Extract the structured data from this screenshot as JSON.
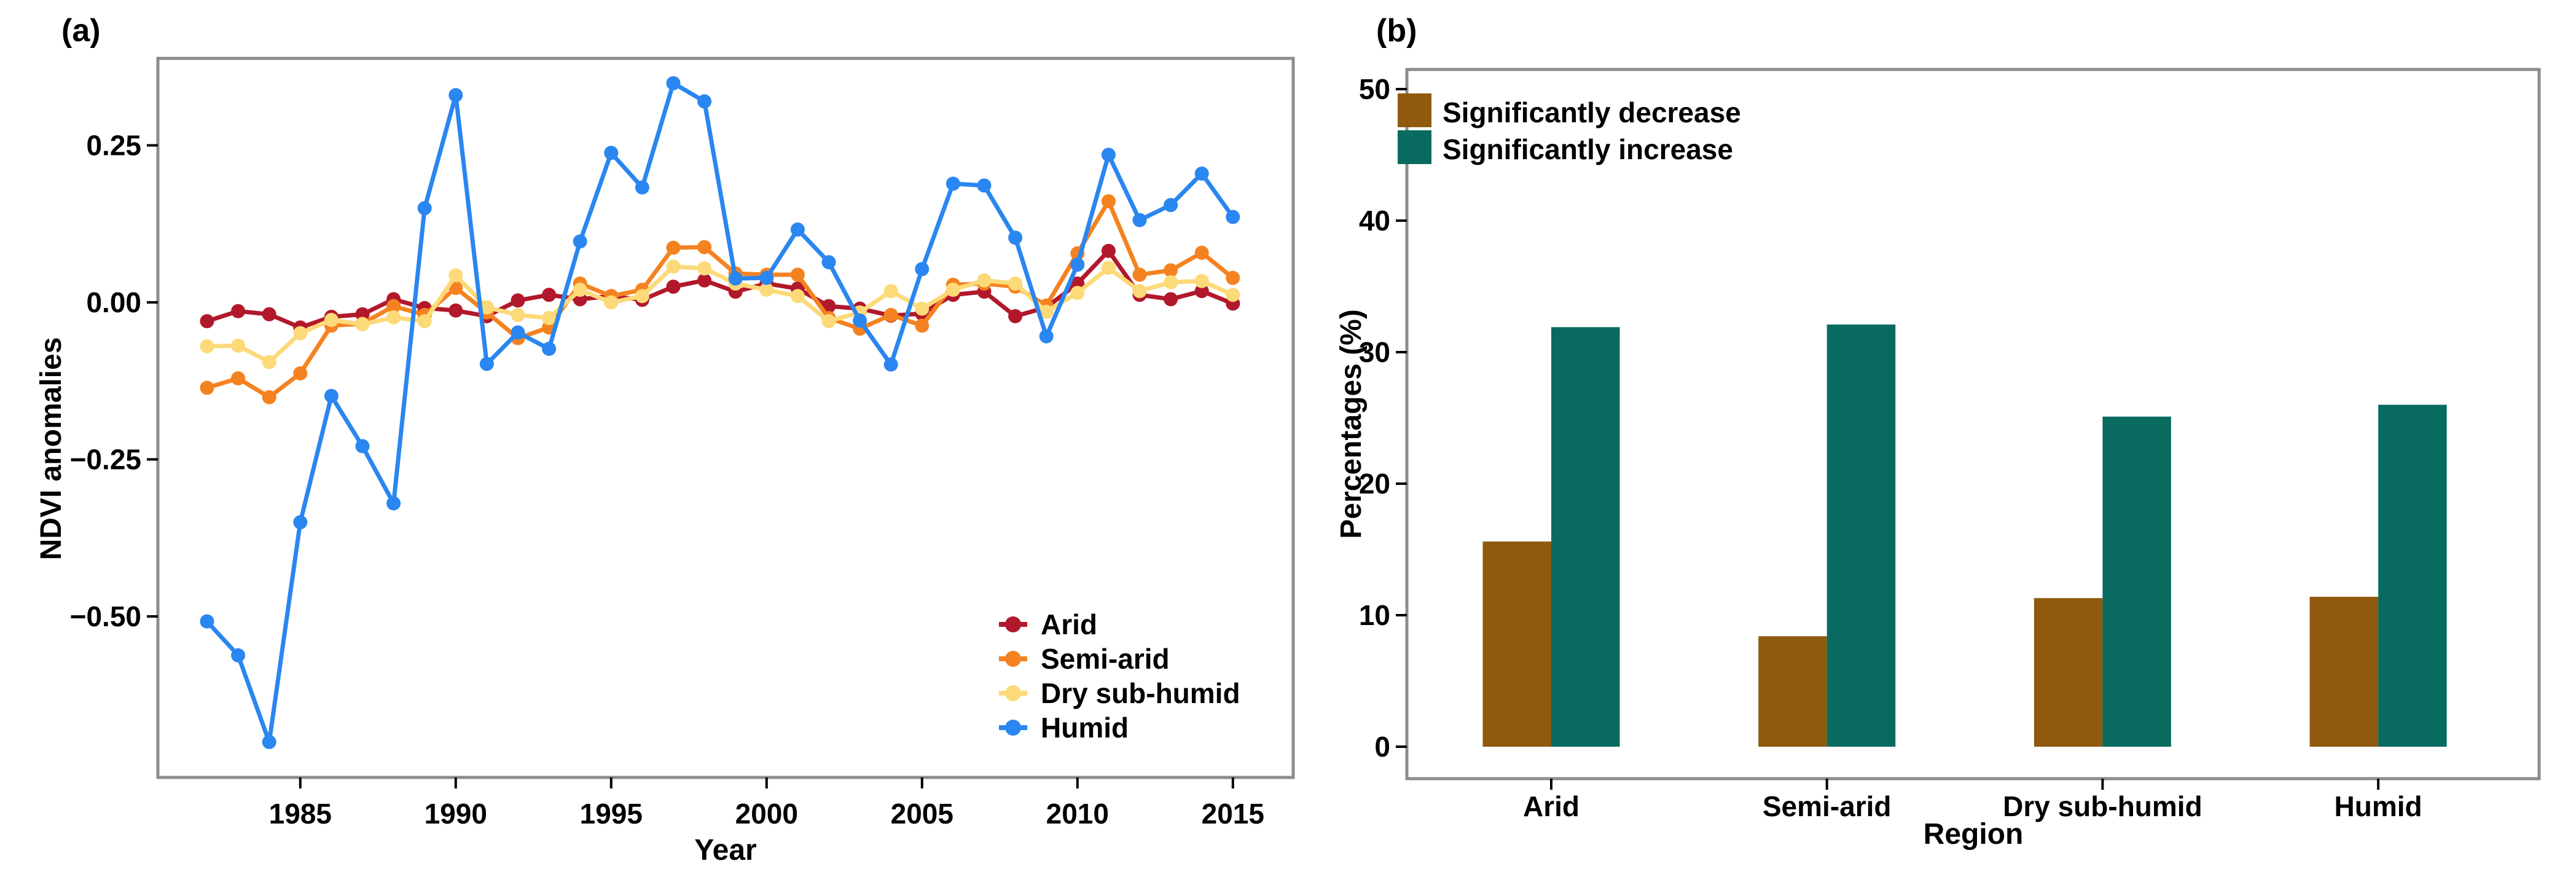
{
  "figure": {
    "background": "#ffffff",
    "frame_color": "#8c8c8c",
    "tick_color": "#000000",
    "text_color": "#000000"
  },
  "chart_data": [
    {
      "id": "ndvi-anomalies-by-region",
      "type": "line",
      "panel_label": "(a)",
      "xlabel": "Year",
      "ylabel": "NDVI anomalies",
      "x": [
        1982,
        1983,
        1984,
        1985,
        1986,
        1987,
        1988,
        1989,
        1990,
        1991,
        1992,
        1993,
        1994,
        1995,
        1996,
        1997,
        1998,
        1999,
        2000,
        2001,
        2002,
        2003,
        2004,
        2005,
        2006,
        2007,
        2008,
        2009,
        2010,
        2011,
        2012,
        2013,
        2014,
        2015
      ],
      "x_tick_values": [
        1985,
        1990,
        1995,
        2000,
        2005,
        2010,
        2015
      ],
      "x_tick_labels": [
        "1985",
        "1990",
        "1995",
        "2000",
        "2005",
        "2010",
        "2015"
      ],
      "y_tick_values": [
        0.25,
        0.0,
        -0.25,
        -0.5
      ],
      "y_tick_labels": [
        "0.25",
        "0.00",
        "−0.25",
        "−0.50"
      ],
      "xlim": [
        1980.4,
        2016.9
      ],
      "ylim": [
        -0.756,
        0.388
      ],
      "grid": false,
      "legend_position": "inside-bottom-right",
      "series": [
        {
          "name": "Arid",
          "color": "#b2182b",
          "values": [
            -0.03,
            -0.014,
            -0.019,
            -0.04,
            -0.023,
            -0.019,
            0.005,
            -0.009,
            -0.013,
            -0.022,
            0.003,
            0.012,
            0.005,
            0.01,
            0.004,
            0.025,
            0.035,
            0.017,
            0.03,
            0.022,
            -0.006,
            -0.01,
            -0.021,
            -0.018,
            0.012,
            0.017,
            -0.022,
            -0.008,
            0.03,
            0.082,
            0.012,
            0.005,
            0.018,
            -0.002
          ]
        },
        {
          "name": "Semi-arid",
          "color": "#f58220",
          "values": [
            -0.136,
            -0.121,
            -0.151,
            -0.113,
            -0.037,
            -0.034,
            -0.006,
            -0.02,
            0.023,
            -0.016,
            -0.057,
            -0.04,
            0.03,
            0.01,
            0.02,
            0.087,
            0.088,
            0.046,
            0.044,
            0.044,
            -0.025,
            -0.042,
            -0.02,
            -0.037,
            0.028,
            0.03,
            0.025,
            -0.005,
            0.078,
            0.161,
            0.044,
            0.051,
            0.079,
            0.039
          ]
        },
        {
          "name": "Dry sub-humid",
          "color": "#fdda79",
          "values": [
            -0.07,
            -0.069,
            -0.095,
            -0.049,
            -0.028,
            -0.035,
            -0.024,
            -0.03,
            0.043,
            -0.008,
            -0.02,
            -0.025,
            0.02,
            0.0,
            0.01,
            0.057,
            0.054,
            0.03,
            0.02,
            0.01,
            -0.03,
            -0.016,
            0.018,
            -0.01,
            0.02,
            0.035,
            0.03,
            -0.015,
            0.015,
            0.055,
            0.018,
            0.032,
            0.034,
            0.012
          ]
        },
        {
          "name": "Humid",
          "color": "#2a86f0",
          "values": [
            -0.508,
            -0.562,
            -0.7,
            -0.35,
            -0.149,
            -0.229,
            -0.32,
            0.15,
            0.33,
            -0.098,
            -0.048,
            -0.074,
            0.097,
            0.238,
            0.183,
            0.349,
            0.32,
            0.038,
            0.039,
            0.116,
            0.064,
            -0.029,
            -0.099,
            0.053,
            0.189,
            0.186,
            0.103,
            -0.054,
            0.06,
            0.235,
            0.131,
            0.155,
            0.205,
            0.136
          ]
        }
      ]
    },
    {
      "id": "significant-change-percentages",
      "type": "bar",
      "panel_label": "(b)",
      "xlabel": "Region",
      "ylabel": "Percentages (%)",
      "categories": [
        "Arid",
        "Semi-arid",
        "Dry sub-humid",
        "Humid"
      ],
      "y_tick_values": [
        0,
        10,
        20,
        30,
        40,
        50
      ],
      "y_tick_labels": [
        "0",
        "10",
        "20",
        "30",
        "40",
        "50"
      ],
      "ylim": [
        0,
        51.5
      ],
      "grid": false,
      "legend_position": "inside-top-left",
      "series": [
        {
          "name": "Significantly decrease",
          "color": "#8f5a0e",
          "values": [
            15.6,
            8.4,
            11.3,
            11.4
          ]
        },
        {
          "name": "Significantly increase",
          "color": "#096b60",
          "values": [
            31.9,
            32.1,
            25.1,
            26.0
          ]
        }
      ]
    }
  ]
}
